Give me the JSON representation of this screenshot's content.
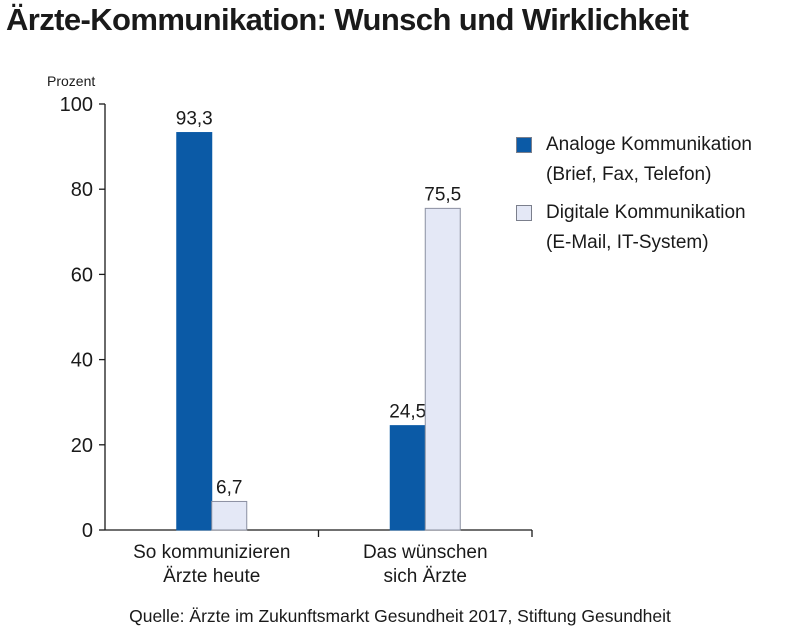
{
  "title": "Ärzte-Kommunikation: Wunsch und Wirklichkeit",
  "source": "Quelle:  Ärzte im Zukunftsmarkt Gesundheit 2017, Stiftung Gesundheit",
  "colors": {
    "analog": "#0b5aa6",
    "digital": "#e4e8f6",
    "digital_border": "#8a8fa0",
    "axis": "#1a1a1a"
  },
  "legend": [
    {
      "line1": "Analoge Kommunikation",
      "line2": "(Brief, Fax, Telefon)"
    },
    {
      "line1": "Digitale Kommunikation",
      "line2": "(E-Mail, IT-System)"
    }
  ],
  "chart_data": {
    "type": "bar",
    "ylabel": "Prozent",
    "ylim": [
      0,
      100
    ],
    "yticks": [
      0,
      20,
      40,
      60,
      80,
      100
    ],
    "categories": [
      [
        "So kommunizieren",
        "Ärzte heute"
      ],
      [
        "Das wünschen",
        "sich Ärzte"
      ]
    ],
    "series": [
      {
        "name": "Analoge Kommunikation (Brief, Fax, Telefon)",
        "values": [
          93.3,
          24.5
        ],
        "labels": [
          "93,3",
          "24,5"
        ]
      },
      {
        "name": "Digitale Kommunikation (E-Mail, IT-System)",
        "values": [
          6.7,
          75.5
        ],
        "labels": [
          "6,7",
          "75,5"
        ]
      }
    ],
    "grid": false,
    "legend_position": "right"
  }
}
